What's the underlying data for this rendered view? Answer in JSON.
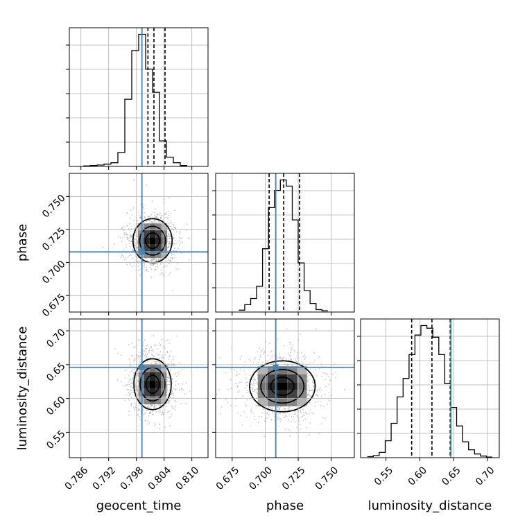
{
  "chart_data": {
    "type": "corner",
    "parameters": [
      {
        "name": "geocent_time",
        "range": [
          0.7835,
          0.8135
        ],
        "ticks": [
          "0.786",
          "0.792",
          "0.798",
          "0.804",
          "0.810"
        ],
        "truth": 0.7992,
        "quantiles": [
          0.8005,
          0.8018,
          0.8042
        ]
      },
      {
        "name": "phase",
        "range": [
          0.6625,
          0.7675
        ],
        "ticks": [
          "0.675",
          "0.700",
          "0.725",
          "0.750"
        ],
        "truth": 0.708,
        "quantiles": [
          0.703,
          0.714,
          0.726
        ]
      },
      {
        "name": "luminosity_distance",
        "range": [
          0.5125,
          0.7175
        ],
        "ticks": [
          "0.55",
          "0.60",
          "0.65",
          "0.70"
        ],
        "truth": 0.646,
        "quantiles": [
          0.588,
          0.618,
          0.645
        ]
      }
    ],
    "histograms": [
      {
        "parameter": "geocent_time",
        "bin_edges": [
          0.7865,
          0.788,
          0.7895,
          0.791,
          0.7925,
          0.794,
          0.7955,
          0.797,
          0.7985,
          0.8,
          0.8015,
          0.803,
          0.8045,
          0.806,
          0.8075,
          0.809
        ],
        "counts": [
          1,
          2,
          3,
          5,
          8,
          30,
          145,
          250,
          285,
          210,
          160,
          55,
          20,
          8,
          2
        ]
      },
      {
        "parameter": "phase",
        "bin_edges": [
          0.68,
          0.6845,
          0.689,
          0.6935,
          0.698,
          0.7025,
          0.707,
          0.7115,
          0.716,
          0.7205,
          0.725,
          0.7295,
          0.734,
          0.7385,
          0.743,
          0.7475
        ],
        "counts": [
          3,
          12,
          22,
          42,
          103,
          170,
          198,
          215,
          205,
          150,
          80,
          35,
          14,
          4,
          2
        ]
      },
      {
        "parameter": "luminosity_distance",
        "bin_edges": [
          0.5225,
          0.5313,
          0.5401,
          0.5489,
          0.5577,
          0.5665,
          0.5753,
          0.5841,
          0.5929,
          0.6017,
          0.6105,
          0.6193,
          0.6281,
          0.6369,
          0.6457,
          0.6545,
          0.6633,
          0.6721,
          0.6809,
          0.6897,
          0.6985,
          0.7073
        ],
        "counts": [
          2,
          4,
          10,
          32,
          65,
          115,
          150,
          195,
          232,
          250,
          245,
          228,
          195,
          140,
          95,
          60,
          30,
          15,
          7,
          3,
          1
        ]
      }
    ],
    "joint_peaks": [
      {
        "x": "geocent_time",
        "y": "phase",
        "mean": [
          0.8015,
          0.7165
        ],
        "sd": [
          0.0023,
          0.0095
        ],
        "contours_in_plot": 3
      },
      {
        "x": "geocent_time",
        "y": "luminosity_distance",
        "mean": [
          0.8015,
          0.621
        ],
        "sd": [
          0.0022,
          0.0215
        ],
        "contours_in_plot": 3
      },
      {
        "x": "phase",
        "y": "luminosity_distance",
        "mean": [
          0.713,
          0.618
        ],
        "sd": [
          0.0135,
          0.0215
        ],
        "contours_in_plot": 3
      }
    ],
    "colors": {
      "truth": "#4682b4",
      "hist": "#000000",
      "grid": "#b0b0b0"
    },
    "grid": true
  }
}
